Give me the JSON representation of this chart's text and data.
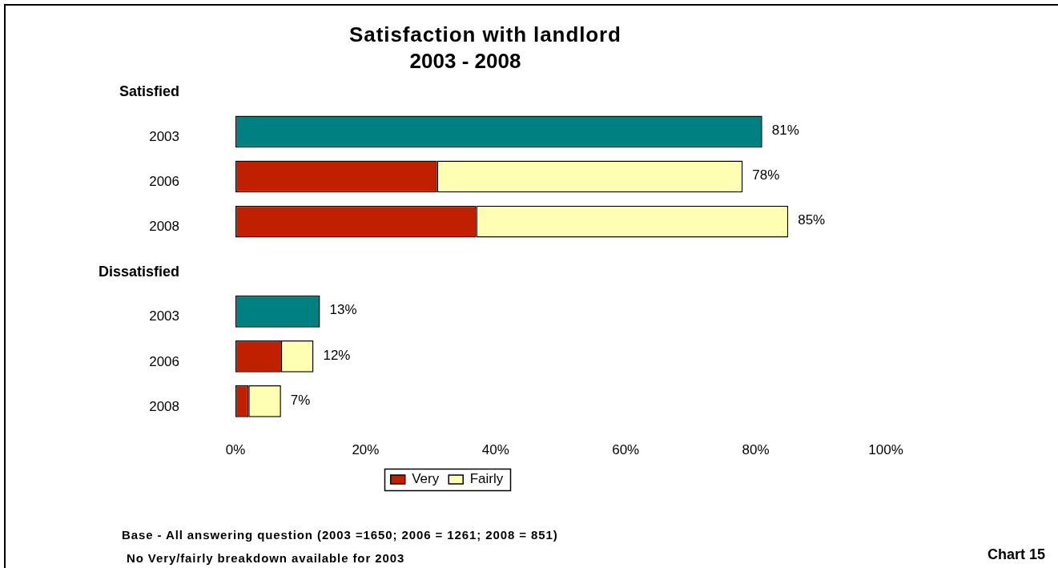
{
  "chart_data": {
    "type": "bar",
    "orientation": "horizontal",
    "stacked": true,
    "title": "Satisfaction with landlord",
    "subtitle": "2003 - 2008",
    "categories": [
      "Satisfied",
      "2003",
      "2006",
      "2008",
      "Dissatisfied",
      "2003",
      "2006",
      "2008"
    ],
    "series": [
      {
        "color": "#008080",
        "values": [
          null,
          81,
          null,
          null,
          null,
          13,
          null,
          null
        ]
      },
      {
        "name": "Very",
        "color": "#c02000",
        "values": [
          null,
          null,
          31,
          37,
          null,
          null,
          7,
          2
        ]
      },
      {
        "name": "Fairly",
        "color": "#ffffb4",
        "values": [
          null,
          null,
          47,
          48,
          null,
          null,
          5,
          5
        ]
      }
    ],
    "totals": [
      null,
      "81%",
      "78%",
      "85%",
      null,
      "13%",
      "12%",
      "7%"
    ],
    "xlim": [
      0,
      100
    ],
    "xticks": [
      {
        "value": 0,
        "label": "0%"
      },
      {
        "value": 20,
        "label": "20%"
      },
      {
        "value": 40,
        "label": "40%"
      },
      {
        "value": 60,
        "label": "60%"
      },
      {
        "value": 80,
        "label": "80%"
      },
      {
        "value": 100,
        "label": "100%"
      }
    ],
    "legend": "bottom",
    "annotations": [
      "Base - All answering question (2003 =1650; 2006 = 1261; 2008 = 851)",
      "No Very/fairly breakdown available for 2003",
      "Chart 15"
    ]
  }
}
